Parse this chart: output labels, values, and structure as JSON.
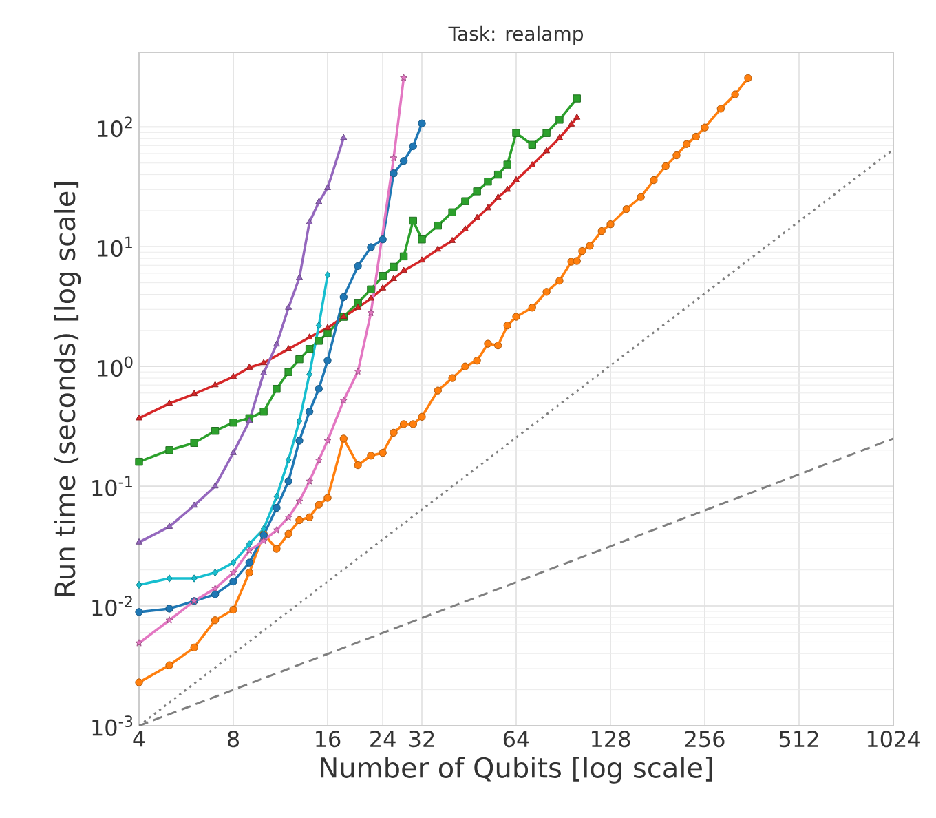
{
  "chart_data": {
    "type": "line",
    "title": "Task: realamp",
    "xlabel": "Number of Qubits [log scale]",
    "ylabel": "Run time (seconds) [log scale]",
    "log": "xy",
    "grid": true,
    "xlim": [
      4,
      1024
    ],
    "ylim": [
      0.001,
      420
    ],
    "xticks": [
      4,
      8,
      16,
      24,
      32,
      64,
      128,
      256,
      512,
      1024
    ],
    "yticks": [
      {
        "value": 0.001,
        "label": "10$^{-3}$"
      },
      {
        "value": 0.01,
        "label": "10$^{-2}$"
      },
      {
        "value": 0.1,
        "label": "10$^{-1}$"
      },
      {
        "value": 1,
        "label": "10$^{0}$"
      },
      {
        "value": 10,
        "label": "10$^{1}$"
      },
      {
        "value": 100,
        "label": "10$^{2}$"
      }
    ],
    "series": [
      {
        "color": "#ff7f0e",
        "marker": "circle",
        "x": [
          4,
          5,
          6,
          7,
          8,
          9,
          10,
          11,
          12,
          13,
          14,
          15,
          16,
          18,
          20,
          22,
          24,
          26,
          28,
          30,
          32,
          36,
          40,
          44,
          48,
          52,
          56,
          60,
          64,
          72,
          80,
          88,
          96,
          100,
          104,
          110,
          120,
          128,
          144,
          160,
          176,
          192,
          208,
          224,
          240,
          256,
          288,
          320,
          352
        ],
        "values": [
          0.0023,
          0.0032,
          0.0045,
          0.0076,
          0.0093,
          0.019,
          0.04,
          0.03,
          0.04,
          0.052,
          0.055,
          0.07,
          0.08,
          0.25,
          0.15,
          0.18,
          0.19,
          0.28,
          0.33,
          0.33,
          0.38,
          0.63,
          0.8,
          1.0,
          1.12,
          1.55,
          1.5,
          2.2,
          2.6,
          3.1,
          4.2,
          5.2,
          7.5,
          7.6,
          9.2,
          10.2,
          13.5,
          15.4,
          20.6,
          26,
          36,
          47,
          58,
          72,
          83,
          99,
          142,
          187,
          256
        ]
      },
      {
        "color": "#2ca02c",
        "marker": "square",
        "x": [
          4,
          5,
          6,
          7,
          8,
          9,
          10,
          11,
          12,
          13,
          14,
          15,
          16,
          18,
          20,
          22,
          24,
          26,
          28,
          30,
          32,
          36,
          40,
          44,
          48,
          52,
          56,
          60,
          64,
          72,
          80,
          88,
          100
        ],
        "values": [
          0.16,
          0.2,
          0.23,
          0.29,
          0.34,
          0.37,
          0.42,
          0.65,
          0.9,
          1.15,
          1.4,
          1.64,
          1.9,
          2.6,
          3.4,
          4.4,
          5.7,
          6.8,
          8.3,
          16.5,
          11.5,
          15,
          19.4,
          24,
          29,
          35,
          40,
          48.5,
          89,
          71,
          89,
          115,
          173
        ]
      },
      {
        "color": "#d62728",
        "marker": "triangle",
        "x": [
          4,
          5,
          6,
          7,
          8,
          9,
          10,
          12,
          14,
          16,
          18,
          20,
          22,
          24,
          26,
          28,
          32,
          36,
          40,
          44,
          48,
          52,
          56,
          60,
          64,
          72,
          80,
          88,
          96,
          100
        ],
        "values": [
          0.37,
          0.49,
          0.59,
          0.7,
          0.82,
          0.98,
          1.07,
          1.4,
          1.75,
          2.1,
          2.6,
          3.1,
          3.7,
          4.5,
          5.4,
          6.3,
          7.7,
          9.5,
          11.2,
          14,
          17.4,
          21,
          25.8,
          30,
          36,
          48,
          63,
          81,
          105,
          120
        ]
      },
      {
        "color": "#9467bd",
        "marker": "triangle",
        "x": [
          4,
          5,
          6,
          7,
          8,
          9,
          10,
          11,
          12,
          13,
          14,
          15,
          16,
          18
        ],
        "values": [
          0.034,
          0.046,
          0.069,
          0.1,
          0.19,
          0.35,
          0.88,
          1.53,
          3.1,
          5.5,
          16,
          23.6,
          31,
          81
        ]
      },
      {
        "color": "#17becf",
        "marker": "diamond",
        "x": [
          4,
          5,
          6,
          7,
          8,
          9,
          10,
          11,
          12,
          13,
          14,
          15,
          16
        ],
        "values": [
          0.015,
          0.017,
          0.017,
          0.019,
          0.023,
          0.033,
          0.044,
          0.082,
          0.166,
          0.35,
          0.86,
          2.2,
          5.8
        ]
      },
      {
        "color": "#1f77b4",
        "marker": "circle",
        "x": [
          4,
          5,
          6,
          7,
          8,
          9,
          10,
          11,
          12,
          13,
          14,
          15,
          16,
          18,
          20,
          22,
          24,
          26,
          28,
          30,
          32
        ],
        "values": [
          0.0089,
          0.0095,
          0.011,
          0.0125,
          0.016,
          0.023,
          0.039,
          0.066,
          0.11,
          0.24,
          0.42,
          0.65,
          1.12,
          3.8,
          6.9,
          9.9,
          11.5,
          41,
          52,
          69,
          107
        ]
      },
      {
        "color": "#e377c2",
        "marker": "star",
        "x": [
          4,
          5,
          6,
          7,
          8,
          9,
          10,
          11,
          12,
          13,
          14,
          15,
          16,
          18,
          20,
          22,
          26,
          28
        ],
        "values": [
          0.0049,
          0.0076,
          0.011,
          0.014,
          0.019,
          0.029,
          0.035,
          0.043,
          0.055,
          0.075,
          0.11,
          0.165,
          0.24,
          0.52,
          0.91,
          2.8,
          55,
          257
        ]
      },
      {
        "color": "#7f7f7f",
        "marker": "none",
        "line_style": "dotted",
        "x": [
          4,
          1024
        ],
        "values": [
          0.001,
          65
        ]
      },
      {
        "color": "#7f7f7f",
        "marker": "none",
        "line_style": "dashed",
        "x": [
          4,
          1024
        ],
        "values": [
          0.001,
          0.25
        ]
      }
    ]
  }
}
